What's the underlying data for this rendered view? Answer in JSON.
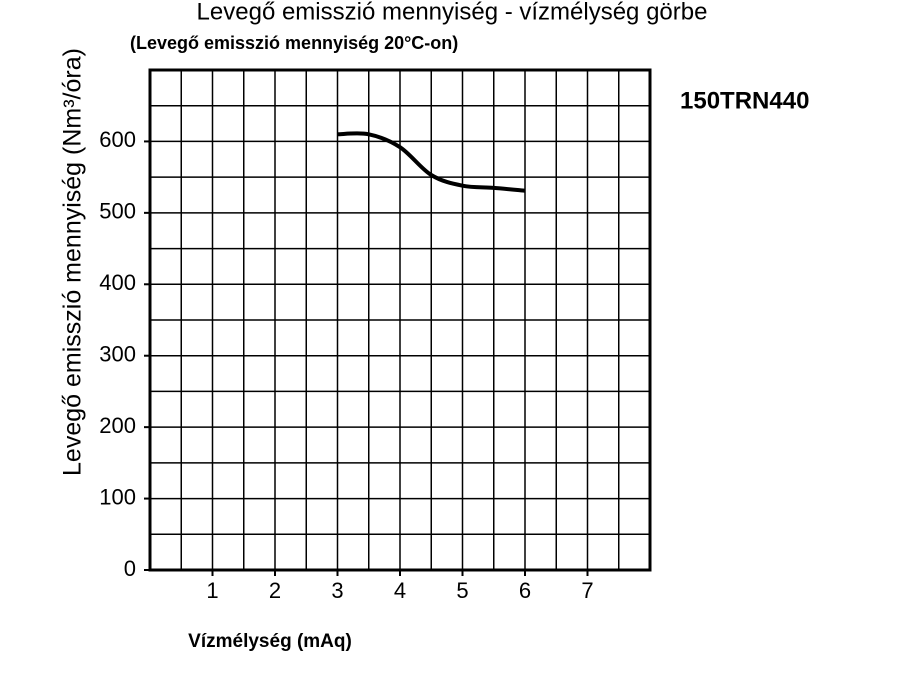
{
  "chart_data": {
    "type": "line",
    "title": "Levegő emisszió mennyiség - vízmélység görbe",
    "subtitle": "(Levegő emisszió mennyiség 20°C-on)",
    "model": "150TRN440",
    "x_label": "Vízmélység (mAq)",
    "y_label": "Levegő emisszió mennyiség (Nm³/óra)",
    "xlim": [
      0,
      8
    ],
    "ylim": [
      0,
      700
    ],
    "xticks": [
      1,
      2,
      3,
      4,
      5,
      6,
      7
    ],
    "yticks": [
      0,
      100,
      200,
      300,
      400,
      500,
      600
    ],
    "grid": true,
    "xgrid": [
      0,
      0.5,
      1,
      1.5,
      2,
      2.5,
      3,
      3.5,
      4,
      4.5,
      5,
      5.5,
      6,
      6.5,
      7,
      7.5,
      8
    ],
    "ygrid": [
      0,
      50,
      100,
      150,
      200,
      250,
      300,
      350,
      400,
      450,
      500,
      550,
      600,
      650,
      700
    ],
    "series": [
      {
        "color": "#000000",
        "x": [
          3,
          3.5,
          4,
          4.5,
          5,
          5.5,
          6
        ],
        "values": [
          610,
          610,
          592,
          553,
          538,
          535,
          531
        ]
      }
    ]
  }
}
